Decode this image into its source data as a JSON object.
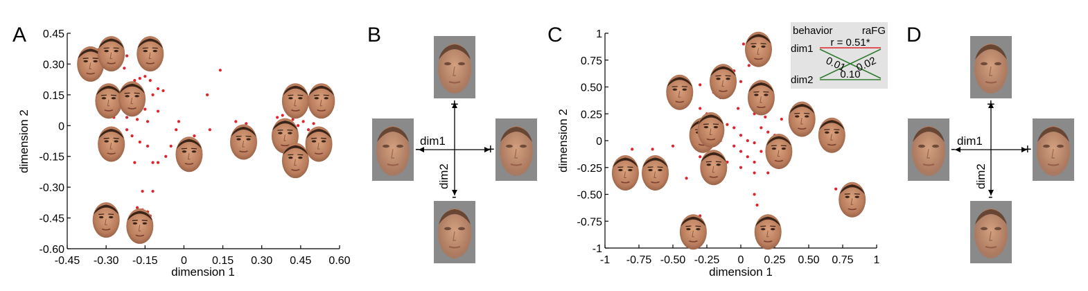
{
  "panels": {
    "A": "A",
    "B": "B",
    "C": "C",
    "D": "D"
  },
  "colors": {
    "point": "#e0222b",
    "red_line": "#e0222b",
    "green_line": "#2f7a2f",
    "inset_bg": "#e3e3e3",
    "face_bg": "#8a8a8a",
    "skin": "#c58a68"
  },
  "chart_data": [
    {
      "type": "scatter",
      "panel": "A",
      "xlabel": "dimension 1",
      "ylabel": "dimension 2",
      "xlim": [
        -0.45,
        0.6
      ],
      "ylim": [
        -0.6,
        0.45
      ],
      "xticks": [
        "-0.45",
        "-0.30",
        "-0.15",
        "0",
        "0.15",
        "0.30",
        "0.45",
        "0.60"
      ],
      "yticks": [
        "0.45",
        "0.30",
        "0.15",
        "0",
        "-0.15",
        "-0.30",
        "-0.45",
        "-0.60"
      ],
      "points": [
        [
          -0.33,
          0.37
        ],
        [
          -0.25,
          0.35
        ],
        [
          -0.22,
          0.34
        ],
        [
          -0.12,
          0.36
        ],
        [
          -0.1,
          0.33
        ],
        [
          -0.3,
          0.28
        ],
        [
          -0.23,
          0.28
        ],
        [
          -0.19,
          0.22
        ],
        [
          -0.17,
          0.23
        ],
        [
          -0.15,
          0.24
        ],
        [
          -0.13,
          0.22
        ],
        [
          -0.22,
          0.19
        ],
        [
          -0.18,
          0.17
        ],
        [
          -0.1,
          0.18
        ],
        [
          -0.12,
          0.15
        ],
        [
          -0.08,
          0.17
        ],
        [
          -0.25,
          0.13
        ],
        [
          -0.2,
          0.1
        ],
        [
          -0.15,
          0.08
        ],
        [
          -0.1,
          0.07
        ],
        [
          -0.27,
          0.04
        ],
        [
          -0.22,
          0.04
        ],
        [
          -0.18,
          0.03
        ],
        [
          -0.14,
          0.02
        ],
        [
          -0.22,
          -0.02
        ],
        [
          -0.2,
          -0.05
        ],
        [
          -0.17,
          -0.08
        ],
        [
          -0.14,
          -0.1
        ],
        [
          -0.19,
          -0.18
        ],
        [
          -0.12,
          -0.18
        ],
        [
          -0.1,
          -0.18
        ],
        [
          -0.07,
          -0.15
        ],
        [
          -0.03,
          -0.02
        ],
        [
          -0.05,
          -0.1
        ],
        [
          -0.02,
          0.02
        ],
        [
          0.02,
          -0.1
        ],
        [
          0.04,
          -0.05
        ],
        [
          0.06,
          -0.12
        ],
        [
          0.1,
          -0.02
        ],
        [
          0.09,
          0.15
        ],
        [
          0.14,
          0.27
        ],
        [
          0.2,
          0.02
        ],
        [
          0.22,
          -0.03
        ],
        [
          0.24,
          0.01
        ],
        [
          0.36,
          0.04
        ],
        [
          0.38,
          0.01
        ],
        [
          0.4,
          -0.01
        ],
        [
          0.42,
          0.03
        ],
        [
          0.44,
          0.0
        ],
        [
          0.46,
          0.02
        ],
        [
          0.48,
          -0.02
        ],
        [
          0.5,
          0.01
        ],
        [
          0.38,
          0.05
        ],
        [
          0.44,
          0.05
        ],
        [
          0.42,
          -0.05
        ],
        [
          -0.16,
          -0.32
        ],
        [
          -0.12,
          -0.32
        ],
        [
          -0.18,
          -0.4
        ],
        [
          -0.16,
          -0.41
        ],
        [
          -0.14,
          -0.42
        ],
        [
          -0.18,
          -0.44
        ],
        [
          -0.16,
          -0.45
        ],
        [
          -0.14,
          -0.45
        ],
        [
          -0.17,
          -0.47
        ],
        [
          -0.14,
          -0.5
        ],
        [
          -0.2,
          -0.46
        ],
        [
          -0.13,
          -0.44
        ]
      ]
    },
    {
      "type": "axes-diagram",
      "panel": "B",
      "x_label": "dim1",
      "y_label": "dim2",
      "plus": "+",
      "minus": "-"
    },
    {
      "type": "scatter",
      "panel": "C",
      "xlabel": "dimension 1",
      "ylabel": "dimension 2",
      "xlim": [
        -1,
        1
      ],
      "ylim": [
        -1,
        1
      ],
      "xticks": [
        "-1",
        "-0.75",
        "-0.50",
        "-0.25",
        "0",
        "0.25",
        "0.50",
        "0.75",
        "1"
      ],
      "yticks": [
        "1",
        "0.75",
        "0.50",
        "0.25",
        "0",
        "-0.25",
        "-0.50",
        "-0.75",
        "-1"
      ],
      "points": [
        [
          0.02,
          0.9
        ],
        [
          0.1,
          0.88
        ],
        [
          0.12,
          0.8
        ],
        [
          0.06,
          0.7
        ],
        [
          -0.05,
          0.65
        ],
        [
          0.0,
          0.55
        ],
        [
          0.14,
          0.55
        ],
        [
          -0.3,
          0.52
        ],
        [
          -0.2,
          0.45
        ],
        [
          -0.15,
          0.4
        ],
        [
          0.08,
          0.4
        ],
        [
          -0.4,
          0.35
        ],
        [
          -0.3,
          0.3
        ],
        [
          -0.25,
          0.25
        ],
        [
          0.1,
          0.25
        ],
        [
          0.18,
          0.22
        ],
        [
          0.3,
          0.2
        ],
        [
          0.4,
          0.15
        ],
        [
          0.5,
          0.1
        ],
        [
          0.6,
          0.05
        ],
        [
          0.7,
          0.02
        ],
        [
          0.15,
          0.12
        ],
        [
          0.2,
          0.08
        ],
        [
          0.25,
          0.05
        ],
        [
          0.3,
          0.0
        ],
        [
          -0.1,
          0.15
        ],
        [
          -0.05,
          0.12
        ],
        [
          -0.2,
          0.1
        ],
        [
          0.0,
          0.05
        ],
        [
          0.05,
          0.0
        ],
        [
          0.1,
          -0.02
        ],
        [
          -0.15,
          0.0
        ],
        [
          -0.05,
          -0.05
        ],
        [
          0.0,
          -0.1
        ],
        [
          0.05,
          -0.15
        ],
        [
          0.1,
          -0.2
        ],
        [
          -0.1,
          -0.2
        ],
        [
          -0.2,
          -0.25
        ],
        [
          -0.3,
          -0.15
        ],
        [
          0.15,
          -0.1
        ],
        [
          0.2,
          -0.3
        ],
        [
          0.1,
          -0.3
        ],
        [
          0.0,
          -0.25
        ],
        [
          -0.8,
          -0.08
        ],
        [
          -0.65,
          -0.08
        ],
        [
          -0.5,
          -0.05
        ],
        [
          -0.4,
          -0.35
        ],
        [
          0.7,
          -0.45
        ],
        [
          0.1,
          -0.5
        ],
        [
          0.12,
          -0.6
        ],
        [
          -0.4,
          -0.78
        ],
        [
          -0.3,
          -0.7
        ],
        [
          0.2,
          -0.75
        ],
        [
          -0.02,
          0.3
        ],
        [
          0.22,
          0.35
        ]
      ],
      "inset": {
        "top_left": "behavior",
        "top_right": "raFG",
        "row1": "dim1",
        "row2": "dim2",
        "r_top": "r = 0.51*",
        "r_cross1": "0.01",
        "r_cross2": "0.02",
        "r_bottom": "0.10"
      }
    },
    {
      "type": "axes-diagram",
      "panel": "D",
      "x_label": "dim1",
      "y_label": "dim2",
      "plus": "+",
      "minus": "-"
    }
  ],
  "faces": {
    "A": [
      [
        -0.36,
        0.3
      ],
      [
        -0.28,
        0.35
      ],
      [
        -0.13,
        0.35
      ],
      [
        -0.29,
        0.12
      ],
      [
        -0.2,
        0.13
      ],
      [
        -0.28,
        -0.09
      ],
      [
        0.02,
        -0.14
      ],
      [
        0.23,
        -0.08
      ],
      [
        0.43,
        0.12
      ],
      [
        0.53,
        0.12
      ],
      [
        0.39,
        -0.05
      ],
      [
        0.52,
        -0.09
      ],
      [
        0.43,
        -0.17
      ],
      [
        -0.3,
        -0.46
      ],
      [
        -0.17,
        -0.49
      ]
    ],
    "C": [
      [
        -0.85,
        -0.3
      ],
      [
        -0.63,
        -0.3
      ],
      [
        -0.45,
        0.45
      ],
      [
        -0.28,
        0.05
      ],
      [
        -0.2,
        -0.25
      ],
      [
        -0.13,
        0.55
      ],
      [
        -0.22,
        0.1
      ],
      [
        0.13,
        0.85
      ],
      [
        0.15,
        0.4
      ],
      [
        0.45,
        0.2
      ],
      [
        0.67,
        0.05
      ],
      [
        0.28,
        -0.1
      ],
      [
        0.82,
        -0.55
      ],
      [
        -0.35,
        -0.85
      ],
      [
        0.2,
        -0.85
      ]
    ]
  }
}
